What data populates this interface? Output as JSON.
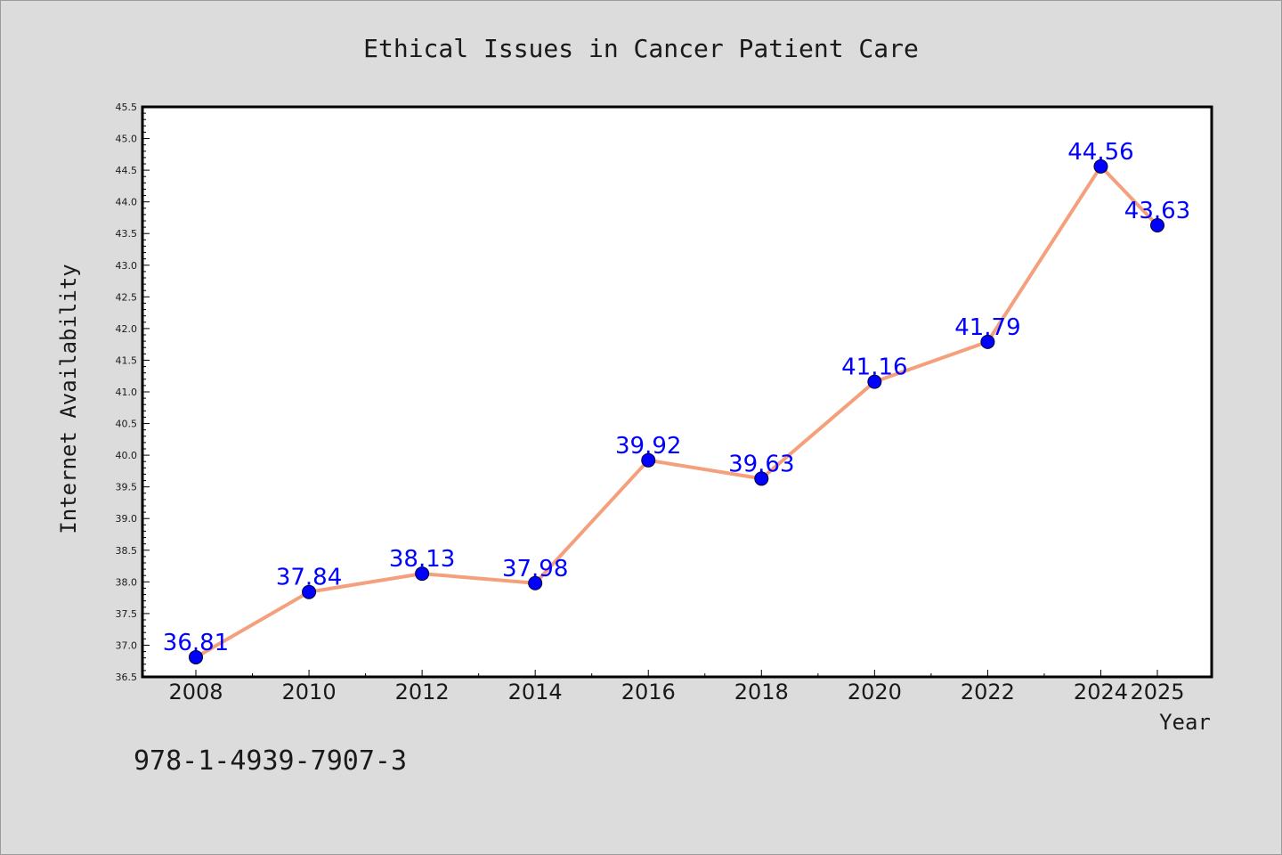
{
  "chart_data": {
    "type": "line",
    "title": "Ethical Issues in Cancer Patient Care",
    "xlabel": "Year",
    "ylabel": "Internet Availability",
    "categories": [
      "2008",
      "2010",
      "2012",
      "2014",
      "2016",
      "2018",
      "2020",
      "2022",
      "2024",
      "2025"
    ],
    "series": [
      {
        "values": [
          36.81,
          37.84,
          38.13,
          37.98,
          39.92,
          39.63,
          41.16,
          41.79,
          44.56,
          43.63
        ]
      }
    ],
    "data_labels": [
      "36.81",
      "37.84",
      "38.13",
      "37.98",
      "39.92",
      "39.63",
      "41.16",
      "41.79",
      "44.56",
      "43.63"
    ],
    "ylim": [
      36.5,
      45.5
    ],
    "yticks": [
      "36.5",
      "37.0",
      "37.5",
      "38.0",
      "38.5",
      "39.0",
      "39.5",
      "40.0",
      "40.5",
      "41.0",
      "41.5",
      "42.0",
      "42.5",
      "43.0",
      "43.5",
      "44.0",
      "44.5",
      "45.0",
      "45.5"
    ],
    "grid": false,
    "colors": {
      "line": "#f4a07c",
      "marker": "#0000ff",
      "data_label": "#0000ff",
      "background": "#dcdcdc",
      "plot_background": "#ffffff"
    }
  },
  "footer": {
    "isbn": "978-1-4939-7907-3"
  }
}
